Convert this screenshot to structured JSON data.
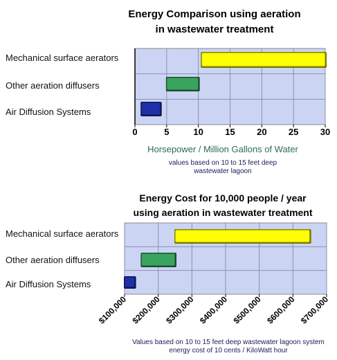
{
  "chart_data": [
    {
      "type": "bar",
      "orientation": "horizontal",
      "title_lines": [
        "Energy Comparison using aeration",
        "in wastewater treatment"
      ],
      "categories": [
        "Mechanical surface aerators",
        "Other aeration diffusers",
        "Air  Diffusion Systems"
      ],
      "ranges": [
        [
          10.5,
          30
        ],
        [
          5,
          10
        ],
        [
          1,
          4
        ]
      ],
      "bar_colors": [
        "#ffff00",
        "#3aa35f",
        "#1f2fa8"
      ],
      "xlim": [
        0,
        30
      ],
      "xticks": [
        0,
        5,
        10,
        15,
        20,
        25,
        30
      ],
      "tick_labels": [
        "0",
        "5",
        "10",
        "15",
        "20",
        "25",
        "30"
      ],
      "xlabel": "Horsepower / Million Gallons of Water",
      "note_lines": [
        "values based on 10 to 15 feet deep",
        "wastewater lagoon"
      ],
      "grid": true,
      "plot_background": "#ccd4f4"
    },
    {
      "type": "bar",
      "orientation": "horizontal",
      "title_lines": [
        "Energy Cost for 10,000 people / year",
        "using aeration in wastewater treatment"
      ],
      "categories": [
        "Mechanical surface aerators",
        "Other aeration diffusers",
        "Air  Diffusion Systems"
      ],
      "ranges": [
        [
          250000,
          650000
        ],
        [
          150000,
          250000
        ],
        [
          100000,
          130000
        ]
      ],
      "bar_colors": [
        "#ffff00",
        "#3aa35f",
        "#1f2fa8"
      ],
      "xlim": [
        100000,
        700000
      ],
      "xticks": [
        100000,
        200000,
        300000,
        400000,
        500000,
        600000,
        700000
      ],
      "tick_labels": [
        "$100,000",
        "$200,000",
        "$300,000",
        "$400,000",
        "$500,000",
        "$600,000",
        "$700,000"
      ],
      "xlabel": "",
      "note_lines": [
        "Values based on 10 to 15 feet deep wastewater lagoon system",
        "energy cost of 10 cents / KiloWatt hour"
      ],
      "grid": true,
      "plot_background": "#ccd4f4"
    }
  ]
}
